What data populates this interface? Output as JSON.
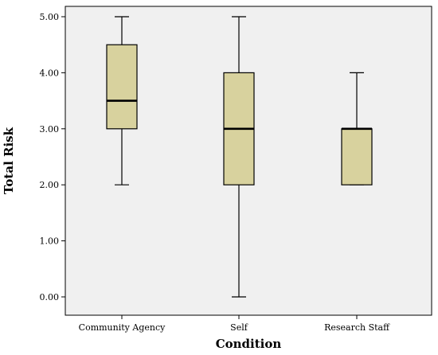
{
  "chart_data": {
    "type": "boxplot",
    "xlabel": "Condition",
    "ylabel": "Total Risk",
    "ylim": [
      0,
      5
    ],
    "yticks": [
      "0.00",
      "1.00",
      "2.00",
      "3.00",
      "4.00",
      "5.00"
    ],
    "grid": false,
    "categories": [
      "Community Agency",
      "Self",
      "Research Staff"
    ],
    "boxes": [
      {
        "category": "Community Agency",
        "min": 2.0,
        "q1": 3.0,
        "median": 3.5,
        "q3": 4.5,
        "max": 5.0
      },
      {
        "category": "Self",
        "min": 0.0,
        "q1": 2.0,
        "median": 3.0,
        "q3": 4.0,
        "max": 5.0
      },
      {
        "category": "Research Staff",
        "min": 2.0,
        "q1": 2.0,
        "median": 3.0,
        "q3": 3.0,
        "max": 4.0
      }
    ],
    "colors": {
      "plot_background": "#f0f0f0",
      "box_fill": "#d8d29e",
      "stroke": "#000000"
    }
  }
}
